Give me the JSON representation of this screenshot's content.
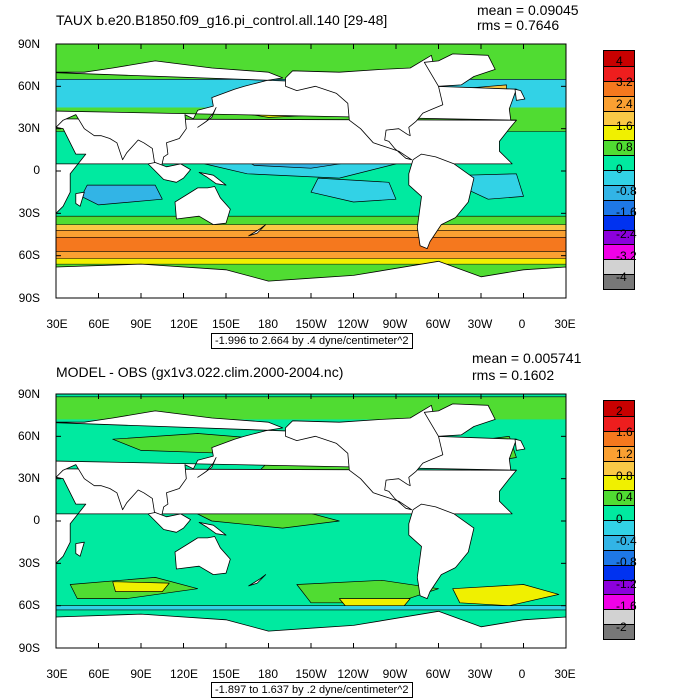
{
  "panels": [
    {
      "title": "TAUX b.e20.B1850.f09_g16.pi_control.all.140 [29-48]",
      "mean": "mean = 0.09045",
      "rms": "rms = 0.7646",
      "range_label": "-1.996 to 2.664 by .4 dyne/centimeter^2",
      "colorbar_labels": [
        "4",
        "3.2",
        "2.4",
        "1.6",
        "0.8",
        "0",
        "-0.8",
        "-1.6",
        "-2.4",
        "-3.2",
        "-4"
      ],
      "colorbar_colors": [
        "#c80000",
        "#ee1e1e",
        "#f5781e",
        "#faa032",
        "#fac846",
        "#f0f000",
        "#50dc32",
        "#00eaa0",
        "#32d2e6",
        "#32b4e6",
        "#1e78e6",
        "#0032f0",
        "#8c00dc",
        "#f000e6",
        "#d2d2d2",
        "#787878"
      ],
      "scene": "wind_stress"
    },
    {
      "title": "MODEL - OBS (gx1v3.022.clim.2000-2004.nc)",
      "mean": "mean = 0.005741",
      "rms": "rms = 0.1602",
      "range_label": "-1.897 to 1.637 by .2 dyne/centimeter^2",
      "colorbar_labels": [
        "2",
        "1.6",
        "1.2",
        "0.8",
        "0.4",
        "0",
        "-0.4",
        "-0.8",
        "-1.2",
        "-1.6",
        "-2"
      ],
      "colorbar_colors": [
        "#c80000",
        "#ee1e1e",
        "#f5781e",
        "#faa032",
        "#fac846",
        "#f0f000",
        "#50dc32",
        "#00eaa0",
        "#32d2e6",
        "#32b4e6",
        "#1e78e6",
        "#0032f0",
        "#8c00dc",
        "#f000e6",
        "#d2d2d2",
        "#787878"
      ],
      "scene": "difference"
    }
  ],
  "lat_labels": [
    "90N",
    "60N",
    "30N",
    "0",
    "30S",
    "60S",
    "90S"
  ],
  "lon_labels": [
    "30E",
    "60E",
    "90E",
    "120E",
    "150E",
    "180",
    "150W",
    "120W",
    "90W",
    "60W",
    "30W",
    "0",
    "30E"
  ]
}
